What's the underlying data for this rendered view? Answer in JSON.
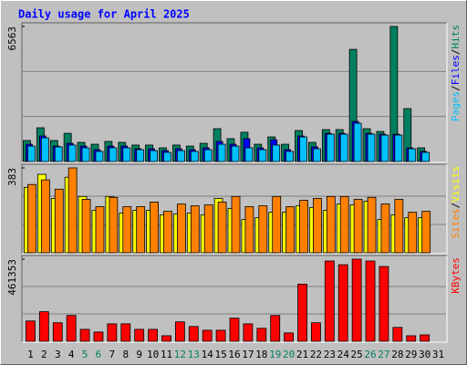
{
  "chart_data": [
    {
      "type": "bar",
      "title": "Daily usage for April 2025",
      "ylim": [
        0,
        6563
      ],
      "yticks": [
        6563
      ],
      "legend_separator": "/",
      "series": [
        {
          "name": "Hits",
          "color": "#008060",
          "values": [
            1020,
            1640,
            1020,
            1370,
            930,
            840,
            975,
            930,
            800,
            800,
            665,
            800,
            750,
            885,
            1595,
            1110,
            1420,
            840,
            1195,
            840,
            1505,
            930,
            1550,
            1550,
            5450,
            1595,
            1460,
            6563,
            2570,
            665,
            null
          ]
        },
        {
          "name": "Files",
          "color": "#0000FF",
          "values": [
            840,
            1240,
            750,
            885,
            750,
            575,
            750,
            750,
            620,
            620,
            530,
            620,
            575,
            665,
            975,
            840,
            1110,
            665,
            1060,
            575,
            1240,
            710,
            1370,
            1370,
            1950,
            1370,
            1330,
            1330,
            665,
            490,
            null
          ]
        },
        {
          "name": "Pages",
          "color": "#00C0FF",
          "values": [
            750,
            1150,
            710,
            800,
            665,
            490,
            665,
            665,
            575,
            530,
            445,
            530,
            490,
            575,
            840,
            750,
            665,
            575,
            800,
            490,
            1195,
            620,
            1330,
            1330,
            1860,
            1330,
            1285,
            1285,
            620,
            445,
            null
          ]
        }
      ]
    },
    {
      "type": "bar",
      "ylim": [
        0,
        383
      ],
      "yticks": [
        383
      ],
      "legend_separator": "/",
      "series": [
        {
          "name": "Visits",
          "color": "#FFFF00",
          "values": [
            295,
            354,
            245,
            341,
            254,
            191,
            254,
            179,
            191,
            191,
            171,
            175,
            179,
            171,
            245,
            200,
            150,
            158,
            183,
            183,
            212,
            204,
            191,
            220,
            216,
            233,
            150,
            171,
            158,
            158,
            null
          ]
        },
        {
          "name": "Sites",
          "color": "#FF8000",
          "values": [
            308,
            329,
            287,
            383,
            241,
            208,
            250,
            208,
            208,
            229,
            187,
            220,
            212,
            216,
            229,
            254,
            208,
            212,
            254,
            208,
            237,
            245,
            254,
            254,
            241,
            250,
            220,
            241,
            183,
            187,
            null
          ]
        }
      ]
    },
    {
      "type": "bar",
      "ylim": [
        0,
        461353
      ],
      "yticks": [
        461353
      ],
      "categories": [
        "1",
        "2",
        "3",
        "4",
        "5",
        "6",
        "7",
        "8",
        "9",
        "10",
        "11",
        "12",
        "13",
        "14",
        "15",
        "16",
        "17",
        "18",
        "19",
        "20",
        "21",
        "22",
        "23",
        "24",
        "25",
        "26",
        "27",
        "28",
        "29",
        "30",
        "31"
      ],
      "category_colors": [
        "#000000",
        "#000000",
        "#000000",
        "#000000",
        "#008060",
        "#008060",
        "#000000",
        "#000000",
        "#000000",
        "#000000",
        "#000000",
        "#008060",
        "#008060",
        "#000000",
        "#000000",
        "#000000",
        "#000000",
        "#000000",
        "#008060",
        "#008060",
        "#000000",
        "#000000",
        "#000000",
        "#000000",
        "#000000",
        "#008060",
        "#008060",
        "#000000",
        "#000000",
        "#000000",
        "#000000"
      ],
      "series": [
        {
          "name": "KBytes",
          "color": "#FF0000",
          "values": [
            114000,
            166000,
            104000,
            145000,
            67000,
            52000,
            98000,
            98000,
            67000,
            67000,
            31000,
            109000,
            83000,
            62000,
            62000,
            130000,
            98000,
            73000,
            145000,
            47000,
            321000,
            104000,
            451000,
            430000,
            461353,
            451000,
            420000,
            78000,
            31000,
            36000,
            null
          ]
        }
      ]
    }
  ]
}
